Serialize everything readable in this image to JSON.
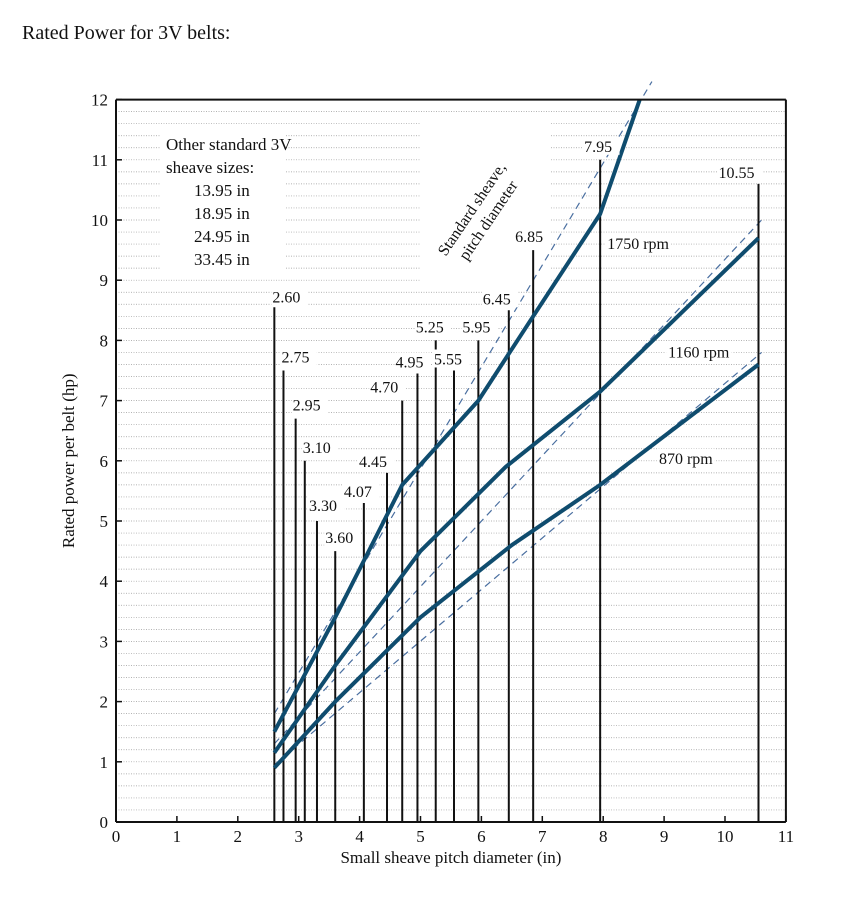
{
  "page": {
    "heading": "Rated Power for 3V belts:"
  },
  "chart_data": {
    "type": "line",
    "title": "Rated Power for 3V belts:",
    "xlabel": "Small sheave pitch diameter (in)",
    "ylabel": "Rated power per belt (hp)",
    "xlim": [
      0,
      11
    ],
    "ylim": [
      0,
      12
    ],
    "x_ticks": [
      "0",
      "1",
      "2",
      "3",
      "4",
      "5",
      "6",
      "7",
      "8",
      "9",
      "10",
      "11"
    ],
    "y_ticks": [
      "0",
      "1",
      "2",
      "3",
      "4",
      "5",
      "6",
      "7",
      "8",
      "9",
      "10",
      "11",
      "12"
    ],
    "grid": "horizontal dotted at 0.2 hp",
    "series": [
      {
        "name": "1750 rpm",
        "x": [
          2.6,
          3.6,
          4.7,
          5.95,
          6.85,
          7.95,
          8.6
        ],
        "y": [
          1.5,
          3.4,
          5.6,
          7.0,
          8.4,
          10.1,
          12.0
        ]
      },
      {
        "name": "1160 rpm",
        "x": [
          2.6,
          3.6,
          5.0,
          6.4,
          7.95,
          10.55
        ],
        "y": [
          1.15,
          2.6,
          4.5,
          5.9,
          7.15,
          9.7
        ]
      },
      {
        "name": "870 rpm",
        "x": [
          2.6,
          3.6,
          5.0,
          6.5,
          7.95,
          10.55
        ],
        "y": [
          0.9,
          2.0,
          3.4,
          4.6,
          5.6,
          7.6
        ]
      }
    ],
    "dashed_lines_label": "Standard sheave,\npitch diameter",
    "dashed_series": [
      {
        "name": "1750 rpm standard",
        "x": [
          2.6,
          8.8
        ],
        "y": [
          1.8,
          12.3
        ]
      },
      {
        "name": "1160 rpm standard",
        "x": [
          2.6,
          10.6
        ],
        "y": [
          1.3,
          10.0
        ]
      },
      {
        "name": "870 rpm standard",
        "x": [
          2.6,
          10.6
        ],
        "y": [
          0.95,
          7.8
        ]
      }
    ],
    "sheave_sizes": [
      {
        "label": "2.60",
        "x": 2.6,
        "top": 8.55
      },
      {
        "label": "2.75",
        "x": 2.75,
        "top": 7.5
      },
      {
        "label": "2.95",
        "x": 2.95,
        "top": 6.7
      },
      {
        "label": "3.10",
        "x": 3.1,
        "top": 6.0
      },
      {
        "label": "3.30",
        "x": 3.3,
        "top": 5.0
      },
      {
        "label": "3.60",
        "x": 3.6,
        "top": 4.5
      },
      {
        "label": "4.07",
        "x": 4.07,
        "top": 5.3
      },
      {
        "label": "4.45",
        "x": 4.45,
        "top": 5.8
      },
      {
        "label": "4.70",
        "x": 4.7,
        "top": 7.0
      },
      {
        "label": "4.95",
        "x": 4.95,
        "top": 7.45
      },
      {
        "label": "5.25",
        "x": 5.25,
        "top": 8.0
      },
      {
        "label": "5.55",
        "x": 5.55,
        "top": 7.5
      },
      {
        "label": "5.95",
        "x": 5.95,
        "top": 8.0
      },
      {
        "label": "6.45",
        "x": 6.45,
        "top": 8.5
      },
      {
        "label": "6.85",
        "x": 6.85,
        "top": 9.5
      },
      {
        "label": "7.95",
        "x": 7.95,
        "top": 11.0
      },
      {
        "label": "10.55",
        "x": 10.55,
        "top": 10.6
      }
    ],
    "annotations": {
      "other_sizes_title": "Other standard 3V",
      "other_sizes_subtitle": "sheave sizes:",
      "other_sizes": [
        "13.95 in",
        "18.95 in",
        "24.95 in",
        "33.45 in"
      ]
    },
    "colors": {
      "curve": "#0f4c6e",
      "dashed": "#4a6fa0",
      "axis": "#111111",
      "grid": "#9a9a9a"
    }
  }
}
